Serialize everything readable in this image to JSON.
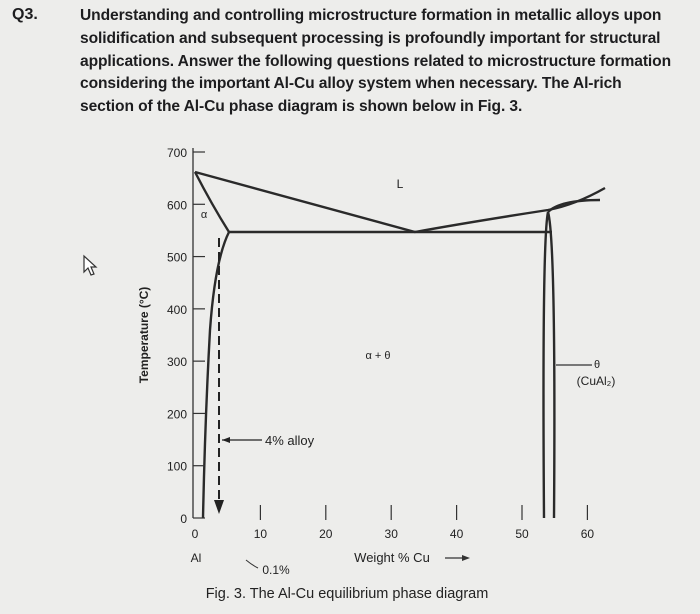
{
  "question": {
    "number": "Q3.",
    "lines": [
      "Understanding and controlling microstructure formation in metallic alloys upon",
      "solidification and subsequent processing is profoundly important for structural",
      "applications. Answer the following questions related to microstructure formation",
      "considering the important Al-Cu alloy system when necessary. The Al-rich",
      "section of the Al-Cu phase diagram is shown below in Fig. 3."
    ]
  },
  "figure": {
    "y_axis_label": "Temperature (°C)",
    "y_ticks": [
      "700",
      "600",
      "500",
      "400",
      "300",
      "200",
      "100",
      "0"
    ],
    "x_ticks": [
      "0",
      "10",
      "20",
      "30",
      "40",
      "50",
      "60"
    ],
    "x_axis_label": "Weight % Cu",
    "x_origin_label": "Al",
    "liquid_label": "L",
    "alpha_label": "α",
    "two_phase_label": "α + θ",
    "theta_label": "θ",
    "theta_formula": "(CuAl₂)",
    "alloy_label": "4% alloy",
    "solubility_label": "0.1%",
    "caption": "Fig. 3. The Al-Cu equilibrium phase diagram"
  }
}
